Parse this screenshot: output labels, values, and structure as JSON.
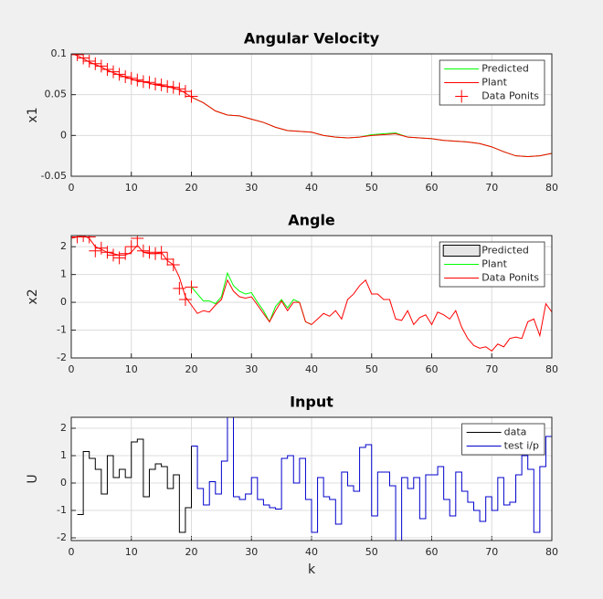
{
  "chart_data": [
    {
      "type": "line",
      "title": "Angular Velocity",
      "ylabel": "x1",
      "xlim": [
        0,
        80
      ],
      "xticks": [
        0,
        10,
        20,
        30,
        40,
        50,
        60,
        70,
        80
      ],
      "ylim": [
        -0.05,
        0.1
      ],
      "yticks": [
        -0.05,
        0,
        0.05,
        0.1
      ],
      "grid": true,
      "legend": "upper right",
      "series": [
        {
          "name": "Predicted",
          "color": "#00ff00",
          "style": "line",
          "x": [
            20,
            22,
            24,
            26,
            28,
            30,
            32,
            34,
            36,
            38,
            40,
            42,
            44,
            46,
            48,
            50,
            52,
            54,
            56,
            58,
            60,
            62,
            64,
            66,
            68,
            70,
            72,
            74,
            76,
            78,
            80
          ],
          "values": [
            0.047,
            0.04,
            0.03,
            0.025,
            0.024,
            0.02,
            0.016,
            0.01,
            0.006,
            0.005,
            0.004,
            0,
            -0.002,
            -0.003,
            -0.002,
            0.001,
            0.002,
            0.003,
            -0.002,
            -0.003,
            -0.004,
            -0.006,
            -0.007,
            -0.008,
            -0.01,
            -0.014,
            -0.02,
            -0.025,
            -0.026,
            -0.025,
            -0.022
          ]
        },
        {
          "name": "Plant",
          "color": "#ff0000",
          "style": "line",
          "x": [
            0,
            1,
            2,
            3,
            4,
            5,
            6,
            7,
            8,
            9,
            10,
            11,
            12,
            13,
            14,
            15,
            16,
            17,
            18,
            19,
            20,
            22,
            24,
            26,
            28,
            30,
            32,
            34,
            36,
            38,
            40,
            42,
            44,
            46,
            48,
            50,
            52,
            54,
            56,
            58,
            60,
            62,
            64,
            66,
            68,
            70,
            72,
            74,
            76,
            78,
            80
          ],
          "values": [
            0.1,
            0.098,
            0.094,
            0.09,
            0.087,
            0.084,
            0.08,
            0.077,
            0.074,
            0.072,
            0.069,
            0.067,
            0.066,
            0.064,
            0.062,
            0.061,
            0.06,
            0.058,
            0.056,
            0.052,
            0.047,
            0.04,
            0.03,
            0.025,
            0.024,
            0.02,
            0.016,
            0.01,
            0.006,
            0.005,
            0.004,
            0,
            -0.002,
            -0.003,
            -0.002,
            0,
            0.001,
            0.002,
            -0.002,
            -0.003,
            -0.004,
            -0.006,
            -0.007,
            -0.008,
            -0.01,
            -0.014,
            -0.02,
            -0.025,
            -0.026,
            -0.025,
            -0.022
          ]
        },
        {
          "name": "Data Ponits",
          "color": "#ff0000",
          "style": "marker",
          "x": [
            1,
            2,
            3,
            4,
            5,
            6,
            7,
            8,
            9,
            10,
            11,
            12,
            13,
            14,
            15,
            16,
            17,
            18,
            19,
            20
          ],
          "values": [
            0.099,
            0.095,
            0.091,
            0.088,
            0.085,
            0.081,
            0.078,
            0.075,
            0.072,
            0.07,
            0.068,
            0.066,
            0.065,
            0.063,
            0.062,
            0.06,
            0.059,
            0.057,
            0.054,
            0.048
          ]
        }
      ]
    },
    {
      "type": "line",
      "title": "Angle",
      "ylabel": "x2",
      "xlim": [
        0,
        80
      ],
      "xticks": [
        0,
        10,
        20,
        30,
        40,
        50,
        60,
        70,
        80
      ],
      "ylim": [
        -2,
        2.4
      ],
      "yticks": [
        -2,
        -1,
        0,
        1,
        2
      ],
      "grid": true,
      "legend": "upper right",
      "series": [
        {
          "name": "Predicted",
          "color": "#ff0000",
          "style": "marker",
          "legend_style": "box",
          "legend_color": "#e6e6e6",
          "x": [
            1,
            2,
            3,
            4,
            5,
            6,
            7,
            8,
            9,
            10,
            11,
            12,
            13,
            14,
            15,
            16,
            17,
            18,
            19,
            20
          ],
          "values": [
            2.35,
            2.4,
            2.35,
            1.85,
            1.95,
            1.8,
            1.7,
            1.6,
            1.75,
            2.0,
            2.3,
            1.85,
            1.8,
            1.75,
            1.8,
            1.55,
            1.35,
            0.5,
            0.1,
            0.55
          ]
        },
        {
          "name": "Plant",
          "color": "#00ff00",
          "style": "line",
          "x": [
            20,
            21,
            22,
            23,
            24,
            25,
            26,
            27,
            28,
            29,
            30,
            31,
            32,
            33,
            34,
            35,
            36,
            37,
            38,
            39,
            40
          ],
          "values": [
            0.55,
            0.3,
            0.05,
            0.05,
            -0.05,
            0.2,
            1.05,
            0.6,
            0.4,
            0.3,
            0.35,
            0,
            -0.3,
            -0.7,
            -0.15,
            0.1,
            -0.2,
            0.1,
            0,
            -0.7,
            -0.8
          ]
        },
        {
          "name": "Data Ponits",
          "color": "#ff0000",
          "style": "line",
          "x": [
            0,
            1,
            2,
            3,
            4,
            5,
            6,
            7,
            8,
            9,
            10,
            11,
            12,
            13,
            14,
            15,
            16,
            17,
            18,
            19,
            20,
            21,
            22,
            23,
            24,
            25,
            26,
            27,
            28,
            29,
            30,
            31,
            32,
            33,
            34,
            35,
            36,
            37,
            38,
            39,
            40,
            41,
            42,
            43,
            44,
            45,
            46,
            47,
            48,
            49,
            50,
            51,
            52,
            53,
            54,
            55,
            56,
            57,
            58,
            59,
            60,
            61,
            62,
            63,
            64,
            65,
            66,
            67,
            68,
            69,
            70,
            71,
            72,
            73,
            74,
            75,
            76,
            77,
            78,
            79,
            80
          ],
          "values": [
            2.3,
            2.35,
            2.4,
            2.3,
            2.0,
            1.9,
            1.8,
            1.75,
            1.7,
            1.7,
            1.8,
            2.05,
            1.8,
            1.75,
            1.75,
            1.8,
            1.5,
            1.35,
            0.9,
            0.2,
            -0.1,
            -0.4,
            -0.3,
            -0.35,
            -0.1,
            0.1,
            0.8,
            0.4,
            0.2,
            0.15,
            0.2,
            -0.1,
            -0.4,
            -0.7,
            -0.3,
            0.05,
            -0.3,
            0,
            0,
            -0.7,
            -0.8,
            -0.6,
            -0.4,
            -0.5,
            -0.3,
            -0.6,
            0.1,
            0.3,
            0.6,
            0.8,
            0.3,
            0.3,
            0.1,
            0.1,
            -0.6,
            -0.65,
            -0.3,
            -0.8,
            -0.55,
            -0.45,
            -0.8,
            -0.35,
            -0.45,
            -0.6,
            -0.3,
            -0.9,
            -1.3,
            -1.55,
            -1.65,
            -1.6,
            -1.75,
            -1.5,
            -1.6,
            -1.3,
            -1.25,
            -1.3,
            -0.7,
            -0.6,
            -1.2,
            -0.05,
            -0.35
          ]
        }
      ]
    },
    {
      "type": "line",
      "title": "Input",
      "ylabel": "U",
      "xlabel": "k",
      "xlim": [
        0,
        80
      ],
      "xticks": [
        0,
        10,
        20,
        30,
        40,
        50,
        60,
        70,
        80
      ],
      "ylim": [
        -2.1,
        2.4
      ],
      "yticks": [
        -2,
        -1,
        0,
        1,
        2
      ],
      "grid": true,
      "legend": "upper right",
      "series": [
        {
          "name": "data",
          "color": "#000000",
          "style": "stairs",
          "x": [
            1,
            2,
            3,
            4,
            5,
            6,
            7,
            8,
            9,
            10,
            11,
            12,
            13,
            14,
            15,
            16,
            17,
            18,
            19,
            20
          ],
          "values": [
            -1.15,
            1.15,
            0.9,
            0.5,
            -0.4,
            1.0,
            0.2,
            0.5,
            0.2,
            1.5,
            1.6,
            -0.5,
            0.5,
            0.7,
            0.6,
            -0.2,
            0.3,
            -1.8,
            -0.9,
            1.35
          ]
        },
        {
          "name": "test i/p",
          "color": "#0000cc",
          "style": "stairs",
          "x": [
            20,
            21,
            22,
            23,
            24,
            25,
            26,
            27,
            28,
            29,
            30,
            31,
            32,
            33,
            34,
            35,
            36,
            37,
            38,
            39,
            40,
            41,
            42,
            43,
            44,
            45,
            46,
            47,
            48,
            49,
            50,
            51,
            52,
            53,
            54,
            55,
            56,
            57,
            58,
            59,
            60,
            61,
            62,
            63,
            64,
            65,
            66,
            67,
            68,
            69,
            70,
            71,
            72,
            73,
            74,
            75,
            76,
            77,
            78,
            79,
            80
          ],
          "values": [
            1.35,
            -0.2,
            -0.8,
            0.05,
            -0.4,
            0.8,
            2.55,
            -0.5,
            -0.6,
            -0.4,
            0.2,
            -0.6,
            -0.8,
            -0.9,
            -0.95,
            0.9,
            1.0,
            0,
            0.9,
            -0.6,
            -1.8,
            0.2,
            -0.5,
            -0.6,
            -1.5,
            0.4,
            -0.1,
            -0.3,
            1.3,
            1.4,
            -1.2,
            0.4,
            0.4,
            -0.1,
            -2.3,
            0.2,
            -0.2,
            0.2,
            -1.3,
            0.3,
            0.3,
            0.6,
            -0.6,
            -1.2,
            0.4,
            -0.3,
            -0.7,
            -1.0,
            -1.4,
            -0.5,
            -1.0,
            0.2,
            -0.8,
            -0.7,
            0.3,
            1.0,
            0.5,
            -1.8,
            0.6,
            1.7,
            -0.8
          ]
        }
      ]
    }
  ]
}
